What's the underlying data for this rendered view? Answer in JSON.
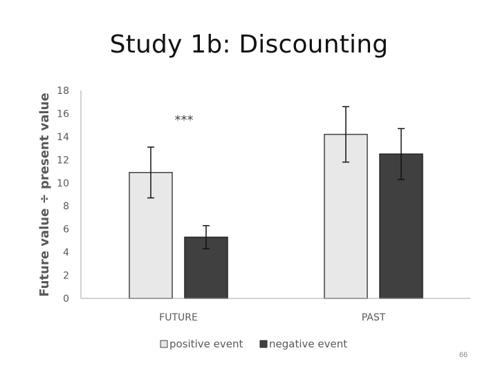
{
  "slide": {
    "title": "Study 1b: Discounting",
    "page_number": "66"
  },
  "chart_data": {
    "type": "bar",
    "title": "",
    "xlabel": "",
    "ylabel": "Future value ÷ present value",
    "ylim": [
      0,
      18
    ],
    "yticks": [
      0,
      2,
      4,
      6,
      8,
      10,
      12,
      14,
      16,
      18
    ],
    "categories": [
      "FUTURE",
      "PAST"
    ],
    "series": [
      {
        "name": "positive event",
        "color": "#e8e8e8",
        "values": [
          10.9,
          14.2
        ],
        "error": [
          2.2,
          2.4
        ]
      },
      {
        "name": "negative event",
        "color": "#404040",
        "values": [
          5.3,
          12.5
        ],
        "error": [
          1.0,
          2.2
        ]
      }
    ],
    "annotations": [
      {
        "text": "***",
        "category": "FUTURE",
        "y": 15.7
      }
    ],
    "legend_position": "bottom",
    "grid": false
  }
}
